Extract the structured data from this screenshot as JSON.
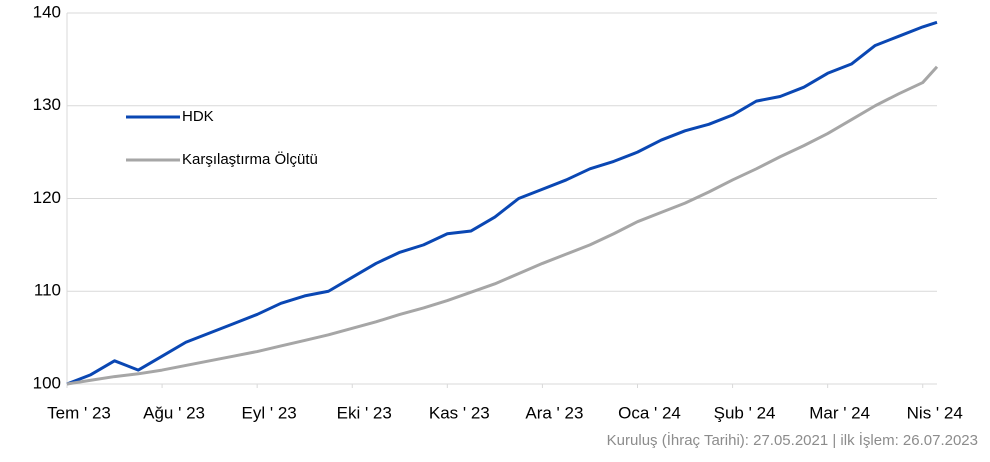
{
  "chart_data": {
    "type": "line",
    "x": [
      0,
      0.25,
      0.5,
      0.75,
      1,
      1.25,
      1.5,
      1.75,
      2,
      2.25,
      2.5,
      2.75,
      3,
      3.25,
      3.5,
      3.75,
      4,
      4.25,
      4.5,
      4.75,
      5,
      5.25,
      5.5,
      5.75,
      6,
      6.25,
      6.5,
      6.75,
      7,
      7.25,
      7.5,
      7.75,
      8,
      8.25,
      8.5,
      8.75,
      9,
      9.15
    ],
    "xlim": [
      0,
      9.15
    ],
    "xticks": [
      {
        "value": 0,
        "label": "Tem ' 23"
      },
      {
        "value": 1,
        "label": "Ağu ' 23"
      },
      {
        "value": 2,
        "label": "Eyl ' 23"
      },
      {
        "value": 3,
        "label": "Eki ' 23"
      },
      {
        "value": 4,
        "label": "Kas ' 23"
      },
      {
        "value": 5,
        "label": "Ara ' 23"
      },
      {
        "value": 6,
        "label": "Oca ' 24"
      },
      {
        "value": 7,
        "label": "Şub ' 24"
      },
      {
        "value": 8,
        "label": "Mar ' 24"
      },
      {
        "value": 9,
        "label": "Nis ' 24"
      }
    ],
    "ylim": [
      100,
      140
    ],
    "yticks": [
      100,
      110,
      120,
      130,
      140
    ],
    "grid": true,
    "series": [
      {
        "name": "HDK",
        "color": "#0a47b3",
        "values": [
          100,
          101,
          102.5,
          101.5,
          103,
          104.5,
          105.5,
          106.5,
          107.5,
          108.7,
          109.5,
          110,
          111.5,
          113,
          114.2,
          115,
          116.2,
          116.5,
          118,
          120,
          121,
          122,
          123.2,
          124,
          125,
          126.3,
          127.3,
          128,
          129,
          130.5,
          131,
          132,
          133.5,
          134.5,
          136.5,
          137.5,
          138.5,
          139
        ]
      },
      {
        "name": "Karşılaştırma Ölçütü",
        "color": "#a6a6a6",
        "values": [
          100,
          100.4,
          100.8,
          101.1,
          101.5,
          102,
          102.5,
          103,
          103.5,
          104.1,
          104.7,
          105.3,
          106,
          106.7,
          107.5,
          108.2,
          109,
          109.9,
          110.8,
          111.9,
          113,
          114,
          115,
          116.2,
          117.5,
          118.5,
          119.5,
          120.7,
          122,
          123.2,
          124.5,
          125.7,
          127,
          128.5,
          130,
          131.3,
          132.5,
          134.2
        ]
      }
    ],
    "footnote": "Kuruluş (İhraç Tarihi): 27.05.2021 | ilk İşlem: 26.07.2023"
  }
}
